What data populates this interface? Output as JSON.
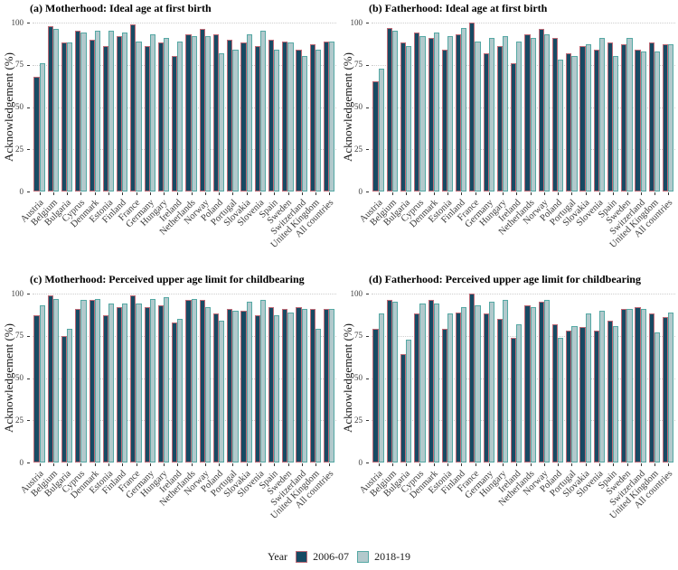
{
  "figure": {
    "background": "#ffffff"
  },
  "axes": {
    "y_label": "Acknowledgement (%)",
    "y_ticks": [
      0,
      25,
      50,
      75,
      100
    ],
    "y_max": 100
  },
  "legend": {
    "title": "Year",
    "items": [
      {
        "label": "2006-07",
        "fill": "#174a63",
        "border": "#bd6b77"
      },
      {
        "label": "2018-19",
        "fill": "#b2c9cc",
        "border": "#55a8a4"
      }
    ]
  },
  "chart_data": [
    {
      "type": "bar",
      "panel": "a",
      "title": "(a) Motherhood: Ideal age at first birth",
      "ylabel": "Acknowledgement (%)",
      "ylim": [
        0,
        100
      ],
      "yticks": [
        0,
        25,
        50,
        75,
        100
      ],
      "grid": "faint dotted horizontal lines at ticks",
      "legend_position": "shared bottom",
      "categories": [
        "Austria",
        "Belgium",
        "Bulgaria",
        "Cyprus",
        "Denmark",
        "Estonia",
        "Finland",
        "France",
        "Germany",
        "Hungary",
        "Ireland",
        "Netherlands",
        "Norway",
        "Poland",
        "Portugal",
        "Slovakia",
        "Slovenia",
        "Spain",
        "Sweden",
        "Switzerland",
        "United Kingdom",
        "All countries"
      ],
      "series": [
        {
          "name": "2006-07",
          "values": [
            68,
            98,
            88,
            95,
            90,
            86,
            92,
            99,
            86,
            88,
            80,
            93,
            96,
            93,
            90,
            88,
            86,
            90,
            89,
            84,
            87,
            89
          ]
        },
        {
          "name": "2018-19",
          "values": [
            76,
            96,
            88,
            94,
            95,
            95,
            94,
            89,
            93,
            91,
            89,
            92,
            92,
            82,
            84,
            93,
            95,
            84,
            88,
            80,
            84,
            89
          ]
        }
      ]
    },
    {
      "type": "bar",
      "panel": "b",
      "title": "(b) Fatherhood: Ideal age at first birth",
      "ylabel": "Acknowledgement (%)",
      "ylim": [
        0,
        100
      ],
      "yticks": [
        0,
        25,
        50,
        75,
        100
      ],
      "grid": "faint dotted horizontal lines at ticks",
      "legend_position": "shared bottom",
      "categories": [
        "Austria",
        "Belgium",
        "Bulgaria",
        "Cyprus",
        "Denmark",
        "Estonia",
        "Finland",
        "France",
        "Germany",
        "Hungary",
        "Ireland",
        "Netherlands",
        "Norway",
        "Poland",
        "Portugal",
        "Slovakia",
        "Slovenia",
        "Spain",
        "Sweden",
        "Switzerland",
        "United Kingdom",
        "All countries"
      ],
      "series": [
        {
          "name": "2006-07",
          "values": [
            65,
            97,
            88,
            94,
            91,
            84,
            93,
            100,
            82,
            86,
            76,
            93,
            96,
            91,
            82,
            86,
            84,
            88,
            87,
            84,
            88,
            87
          ]
        },
        {
          "name": "2018-19",
          "values": [
            73,
            95,
            86,
            92,
            94,
            92,
            97,
            89,
            91,
            92,
            89,
            91,
            93,
            78,
            80,
            87,
            91,
            80,
            91,
            83,
            83,
            87
          ]
        }
      ]
    },
    {
      "type": "bar",
      "panel": "c",
      "title": "(c) Motherhood: Perceived upper age limit for childbearing",
      "ylabel": "Acknowledgement (%)",
      "ylim": [
        0,
        100
      ],
      "yticks": [
        0,
        25,
        50,
        75,
        100
      ],
      "grid": "faint dotted horizontal lines at ticks",
      "legend_position": "shared bottom",
      "categories": [
        "Austria",
        "Belgium",
        "Bulgaria",
        "Cyprus",
        "Denmark",
        "Estonia",
        "Finland",
        "France",
        "Germany",
        "Hungary",
        "Ireland",
        "Netherlands",
        "Norway",
        "Poland",
        "Portugal",
        "Slovakia",
        "Slovenia",
        "Spain",
        "Sweden",
        "Switzerland",
        "United Kingdom",
        "All countries"
      ],
      "series": [
        {
          "name": "2006-07",
          "values": [
            87,
            99,
            75,
            91,
            96,
            87,
            92,
            99,
            92,
            93,
            83,
            96,
            96,
            88,
            91,
            90,
            87,
            92,
            91,
            92,
            91,
            91
          ]
        },
        {
          "name": "2018-19",
          "values": [
            93,
            97,
            79,
            96,
            97,
            94,
            94,
            94,
            97,
            98,
            85,
            97,
            92,
            84,
            90,
            95,
            96,
            87,
            89,
            91,
            79,
            91
          ]
        }
      ]
    },
    {
      "type": "bar",
      "panel": "d",
      "title": "(d) Fatherhood: Perceived upper age limit for childbearing",
      "ylabel": "Acknowledgement (%)",
      "ylim": [
        0,
        100
      ],
      "yticks": [
        0,
        25,
        50,
        75,
        100
      ],
      "grid": "faint dotted horizontal lines at ticks",
      "legend_position": "shared bottom",
      "categories": [
        "Austria",
        "Belgium",
        "Bulgaria",
        "Cyprus",
        "Denmark",
        "Estonia",
        "Finland",
        "France",
        "Germany",
        "Hungary",
        "Ireland",
        "Netherlands",
        "Norway",
        "Poland",
        "Portugal",
        "Slovakia",
        "Slovenia",
        "Spain",
        "Sweden",
        "Switzerland",
        "United Kingdom",
        "All countries"
      ],
      "series": [
        {
          "name": "2006-07",
          "values": [
            79,
            96,
            64,
            88,
            96,
            79,
            89,
            100,
            88,
            85,
            74,
            93,
            95,
            82,
            78,
            80,
            78,
            84,
            91,
            92,
            88,
            86
          ]
        },
        {
          "name": "2018-19",
          "values": [
            88,
            95,
            73,
            94,
            94,
            88,
            92,
            93,
            95,
            96,
            82,
            92,
            96,
            74,
            81,
            88,
            90,
            81,
            91,
            91,
            77,
            89
          ]
        }
      ]
    }
  ]
}
